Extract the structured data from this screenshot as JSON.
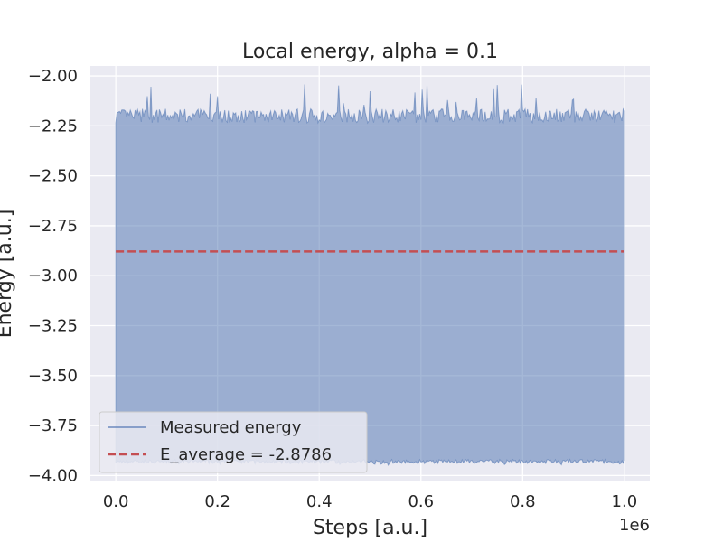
{
  "chart_data": {
    "type": "line",
    "title": "Local energy, alpha = 0.1",
    "xlabel": "Steps [a.u.]",
    "ylabel": "Energy [a.u.]",
    "x_offset_text": "1e6",
    "xlim": [
      -0.05,
      1.05
    ],
    "ylim": [
      -4.03,
      -1.95
    ],
    "x_ticks": [
      0.0,
      0.2,
      0.4,
      0.6,
      0.8,
      1.0
    ],
    "x_tick_labels": [
      "0.0",
      "0.2",
      "0.4",
      "0.6",
      "0.8",
      "1.0"
    ],
    "y_ticks": [
      -2.0,
      -2.25,
      -2.5,
      -2.75,
      -3.0,
      -3.25,
      -3.5,
      -3.75,
      -4.0
    ],
    "y_tick_labels": [
      "−2.00",
      "−2.25",
      "−2.50",
      "−2.75",
      "−3.00",
      "−3.25",
      "−3.50",
      "−3.75",
      "−4.00"
    ],
    "grid": true,
    "legend_position": "lower-left",
    "series": [
      {
        "name": "Measured energy",
        "color": "#4c72b0",
        "style": "solid",
        "x_range": [
          0.0,
          1.0
        ],
        "y_min": -3.95,
        "y_max": -2.04,
        "typical_upper": -2.2,
        "typical_lower": -3.93
      },
      {
        "name": "E_average = -2.8786",
        "color": "#c44e52",
        "style": "dashed",
        "x": [
          0.0,
          1.0
        ],
        "y": [
          -2.8786,
          -2.8786
        ]
      }
    ]
  }
}
